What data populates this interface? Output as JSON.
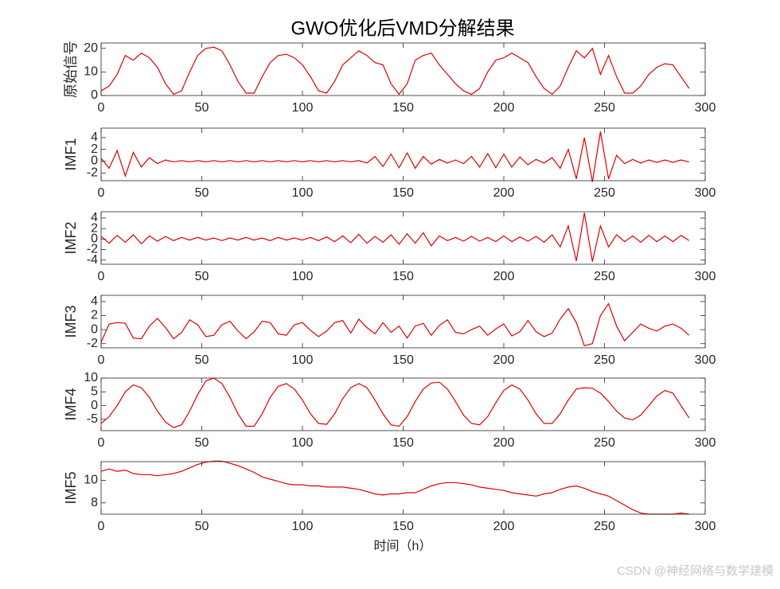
{
  "watermark": "CSDN @神经网络与数学建模",
  "chart_data": [
    {
      "type": "line",
      "title": "GWO优化后VMD分解结果",
      "ylabel": "原始信号",
      "color": "#e00000",
      "x": [
        0,
        4,
        8,
        12,
        16,
        20,
        24,
        28,
        32,
        36,
        40,
        44,
        48,
        52,
        56,
        60,
        64,
        68,
        72,
        76,
        80,
        84,
        88,
        92,
        96,
        100,
        104,
        108,
        112,
        116,
        120,
        124,
        128,
        132,
        136,
        140,
        144,
        148,
        152,
        156,
        160,
        164,
        168,
        172,
        176,
        180,
        184,
        188,
        192,
        196,
        200,
        204,
        208,
        212,
        216,
        220,
        224,
        228,
        232,
        236,
        240,
        244,
        248,
        252,
        256,
        260,
        264,
        268,
        272,
        276,
        280,
        284,
        288,
        292
      ],
      "values": [
        2,
        4,
        9,
        17,
        15,
        18,
        16,
        12,
        5,
        0.5,
        2,
        10,
        17,
        20,
        20.5,
        19,
        13,
        6,
        1,
        1,
        8,
        14,
        17,
        17.5,
        16,
        13,
        8,
        2,
        1,
        6,
        13,
        16,
        19,
        17,
        14,
        13,
        5,
        0.5,
        5,
        15,
        17,
        18,
        13,
        9,
        5,
        2,
        0.5,
        3,
        10,
        15,
        16,
        18,
        16,
        14,
        8,
        3,
        0.5,
        4,
        12,
        19,
        16,
        20,
        9,
        17,
        8,
        1,
        1,
        4,
        9,
        12,
        13.5,
        13,
        8,
        3
      ],
      "xlim": [
        0,
        300
      ],
      "xticks": [
        0,
        50,
        100,
        150,
        200,
        250,
        300
      ],
      "ylim": [
        0,
        22.3
      ],
      "yticks": [
        0,
        10,
        20
      ]
    },
    {
      "type": "line",
      "ylabel": "IMF1",
      "color": "#e00000",
      "x": [
        0,
        4,
        8,
        12,
        16,
        20,
        24,
        28,
        32,
        36,
        40,
        44,
        48,
        52,
        56,
        60,
        64,
        68,
        72,
        76,
        80,
        84,
        88,
        92,
        96,
        100,
        104,
        108,
        112,
        116,
        120,
        124,
        128,
        132,
        136,
        140,
        144,
        148,
        152,
        156,
        160,
        164,
        168,
        172,
        176,
        180,
        184,
        188,
        192,
        196,
        200,
        204,
        208,
        212,
        216,
        220,
        224,
        228,
        232,
        236,
        240,
        244,
        248,
        252,
        256,
        260,
        264,
        268,
        272,
        276,
        280,
        284,
        288,
        292
      ],
      "values": [
        0.5,
        -1.2,
        1.8,
        -2.5,
        1.5,
        -1,
        0.6,
        -0.4,
        0.2,
        -0.1,
        0.1,
        -0.1,
        0.1,
        -0.1,
        0.1,
        -0.1,
        0.1,
        -0.1,
        0.1,
        -0.1,
        0.1,
        -0.1,
        0.1,
        -0.1,
        0.1,
        -0.1,
        0.1,
        -0.1,
        0.1,
        -0.1,
        0.1,
        -0.1,
        0.1,
        -0.3,
        0.8,
        -0.9,
        1.2,
        -1.1,
        1.4,
        -1.2,
        0.8,
        -0.5,
        0.3,
        -0.3,
        0.2,
        -0.4,
        0.8,
        -1,
        1.3,
        -1.1,
        1.2,
        -1,
        0.7,
        -0.6,
        0.3,
        -0.3,
        0.6,
        -1.2,
        2,
        -3,
        4,
        -3.5,
        5,
        -3,
        1,
        -0.4,
        0.3,
        -0.3,
        0.2,
        -0.2,
        0.2,
        -0.2,
        0.2,
        -0.1
      ],
      "xlim": [
        0,
        300
      ],
      "xticks": [
        0,
        50,
        100,
        150,
        200,
        250,
        300
      ],
      "ylim": [
        -3.3,
        5.6
      ],
      "yticks": [
        -2,
        0,
        2,
        4
      ]
    },
    {
      "type": "line",
      "ylabel": "IMF2",
      "color": "#e00000",
      "x": [
        0,
        4,
        8,
        12,
        16,
        20,
        24,
        28,
        32,
        36,
        40,
        44,
        48,
        52,
        56,
        60,
        64,
        68,
        72,
        76,
        80,
        84,
        88,
        92,
        96,
        100,
        104,
        108,
        112,
        116,
        120,
        124,
        128,
        132,
        136,
        140,
        144,
        148,
        152,
        156,
        160,
        164,
        168,
        172,
        176,
        180,
        184,
        188,
        192,
        196,
        200,
        204,
        208,
        212,
        216,
        220,
        224,
        228,
        232,
        236,
        240,
        244,
        248,
        252,
        256,
        260,
        264,
        268,
        272,
        276,
        280,
        284,
        288,
        292
      ],
      "values": [
        0.5,
        -0.8,
        0.7,
        -0.6,
        0.8,
        -0.9,
        0.6,
        -0.4,
        0.5,
        -0.3,
        0.3,
        -0.2,
        0.3,
        -0.2,
        0.2,
        -0.3,
        0.2,
        -0.2,
        0.3,
        -0.2,
        0.2,
        -0.3,
        0.3,
        -0.2,
        0.2,
        -0.2,
        0.3,
        -0.3,
        0.4,
        -0.5,
        0.6,
        -0.7,
        0.9,
        -0.8,
        0.5,
        -0.6,
        0.8,
        -1,
        1,
        -0.8,
        1.2,
        -1.3,
        0.6,
        -0.3,
        0.3,
        -0.4,
        0.5,
        -0.4,
        0.3,
        -0.5,
        0.6,
        -0.5,
        0.4,
        -0.4,
        0.5,
        -0.6,
        0.8,
        -1.5,
        2.5,
        -4.2,
        5,
        -4.3,
        2.5,
        -1.5,
        0.8,
        -0.5,
        0.6,
        -0.6,
        0.7,
        -0.5,
        0.6,
        -0.5,
        0.7,
        -0.3
      ],
      "xlim": [
        0,
        300
      ],
      "xticks": [
        0,
        50,
        100,
        150,
        200,
        250,
        300
      ],
      "ylim": [
        -4.8,
        5.2
      ],
      "yticks": [
        -4,
        -2,
        0,
        2,
        4
      ]
    },
    {
      "type": "line",
      "ylabel": "IMF3",
      "color": "#e00000",
      "x": [
        0,
        4,
        8,
        12,
        16,
        20,
        24,
        28,
        32,
        36,
        40,
        44,
        48,
        52,
        56,
        60,
        64,
        68,
        72,
        76,
        80,
        84,
        88,
        92,
        96,
        100,
        104,
        108,
        112,
        116,
        120,
        124,
        128,
        132,
        136,
        140,
        144,
        148,
        152,
        156,
        160,
        164,
        168,
        172,
        176,
        180,
        184,
        188,
        192,
        196,
        200,
        204,
        208,
        212,
        216,
        220,
        224,
        228,
        232,
        236,
        240,
        244,
        248,
        252,
        256,
        260,
        264,
        268,
        272,
        276,
        280,
        284,
        288,
        292
      ],
      "values": [
        -1.8,
        0.8,
        1,
        0.9,
        -1.2,
        -1.3,
        0.5,
        1.6,
        0.3,
        -1.3,
        -0.4,
        1.4,
        0.7,
        -1,
        -0.8,
        0.7,
        1.2,
        -0.2,
        -1.3,
        -0.3,
        1.2,
        1,
        -0.6,
        -0.8,
        0.7,
        1,
        -0.1,
        -1,
        -0.2,
        1,
        1.3,
        -0.5,
        1.5,
        0.3,
        -0.6,
        1,
        -0.4,
        0.5,
        -1.2,
        0.5,
        0.9,
        -0.8,
        0.6,
        1.4,
        -0.4,
        -0.6,
        0,
        0.5,
        -0.8,
        0.1,
        0.8,
        -0.9,
        -0.3,
        1.3,
        -0.3,
        -1,
        -0.5,
        1.5,
        3,
        1,
        -2.3,
        -2,
        2,
        3.7,
        0.5,
        -1.6,
        -0.4,
        0.8,
        0.2,
        -0.2,
        0.5,
        0.8,
        0.2,
        -0.8
      ],
      "xlim": [
        0,
        300
      ],
      "xticks": [
        0,
        50,
        100,
        150,
        200,
        250,
        300
      ],
      "ylim": [
        -2.6,
        4.9
      ],
      "yticks": [
        -2,
        0,
        2,
        4
      ]
    },
    {
      "type": "line",
      "ylabel": "IMF4",
      "color": "#e00000",
      "x": [
        0,
        4,
        8,
        12,
        16,
        20,
        24,
        28,
        32,
        36,
        40,
        44,
        48,
        52,
        56,
        60,
        64,
        68,
        72,
        76,
        80,
        84,
        88,
        92,
        96,
        100,
        104,
        108,
        112,
        116,
        120,
        124,
        128,
        132,
        136,
        140,
        144,
        148,
        152,
        156,
        160,
        164,
        168,
        172,
        176,
        180,
        184,
        188,
        192,
        196,
        200,
        204,
        208,
        212,
        216,
        220,
        224,
        228,
        232,
        236,
        240,
        244,
        248,
        252,
        256,
        260,
        264,
        268,
        272,
        276,
        280,
        284,
        288,
        292
      ],
      "values": [
        -6.5,
        -4,
        0,
        5,
        7.5,
        6.5,
        3,
        -2,
        -6,
        -8,
        -7,
        -2,
        4,
        9,
        10,
        8,
        3,
        -3,
        -7.5,
        -7.5,
        -3,
        3,
        7,
        8,
        6,
        2,
        -3,
        -6.5,
        -6.8,
        -3,
        2.5,
        6.5,
        8,
        6.5,
        2,
        -3,
        -7,
        -7.5,
        -4,
        1.5,
        6,
        8.2,
        8.5,
        6,
        1.5,
        -3.5,
        -6.5,
        -7,
        -4,
        1,
        5.5,
        7.5,
        6,
        2,
        -3,
        -6.5,
        -6.5,
        -3,
        2,
        6,
        6.5,
        6.3,
        4.5,
        1.5,
        -2,
        -4.5,
        -5.2,
        -3.5,
        0,
        3.5,
        5.5,
        4.5,
        0,
        -4.5
      ],
      "xlim": [
        0,
        300
      ],
      "xticks": [
        0,
        50,
        100,
        150,
        200,
        250,
        300
      ],
      "ylim": [
        -9.1,
        10
      ],
      "yticks": [
        -5,
        0,
        5,
        10
      ]
    },
    {
      "type": "line",
      "ylabel": "IMF5",
      "xlabel": "时间（h）",
      "color": "#e00000",
      "x": [
        0,
        4,
        8,
        12,
        16,
        20,
        24,
        28,
        32,
        36,
        40,
        44,
        48,
        52,
        56,
        60,
        64,
        68,
        72,
        76,
        80,
        84,
        88,
        92,
        96,
        100,
        104,
        108,
        112,
        116,
        120,
        124,
        128,
        132,
        136,
        140,
        144,
        148,
        152,
        156,
        160,
        164,
        168,
        172,
        176,
        180,
        184,
        188,
        192,
        196,
        200,
        204,
        208,
        212,
        216,
        220,
        224,
        228,
        232,
        236,
        240,
        244,
        248,
        252,
        256,
        260,
        264,
        268,
        272,
        276,
        280,
        284,
        288,
        292
      ],
      "values": [
        10.8,
        11,
        10.8,
        10.9,
        10.6,
        10.5,
        10.5,
        10.4,
        10.5,
        10.6,
        10.8,
        11.1,
        11.4,
        11.6,
        11.7,
        11.7,
        11.5,
        11.3,
        11,
        10.7,
        10.3,
        10.1,
        9.9,
        9.7,
        9.6,
        9.6,
        9.5,
        9.5,
        9.4,
        9.4,
        9.4,
        9.3,
        9.2,
        9,
        8.8,
        8.7,
        8.8,
        8.8,
        8.9,
        8.9,
        9.2,
        9.5,
        9.7,
        9.8,
        9.8,
        9.7,
        9.6,
        9.4,
        9.3,
        9.2,
        9.1,
        8.9,
        8.8,
        8.7,
        8.6,
        8.8,
        8.9,
        9.2,
        9.4,
        9.5,
        9.3,
        9,
        8.8,
        8.6,
        8.2,
        7.8,
        7.4,
        7.1,
        7,
        7,
        7,
        7,
        7.1,
        7
      ],
      "xlim": [
        0,
        300
      ],
      "xticks": [
        0,
        50,
        100,
        150,
        200,
        250,
        300
      ],
      "ylim": [
        7,
        11.65
      ],
      "yticks": [
        8,
        10
      ]
    }
  ]
}
